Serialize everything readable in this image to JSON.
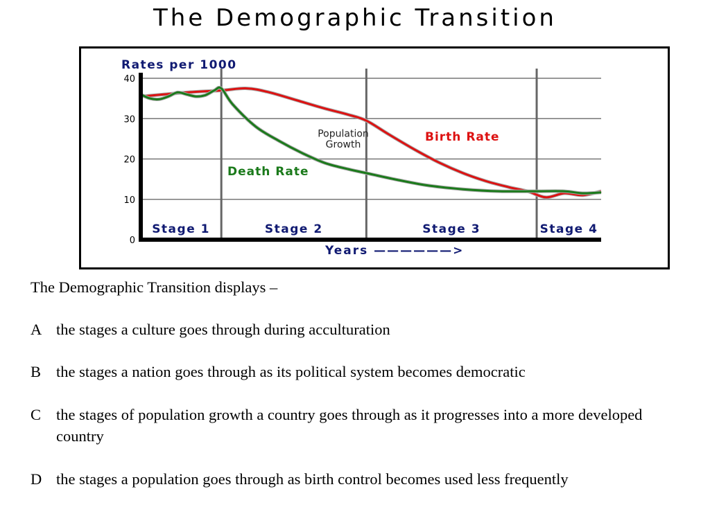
{
  "slide": {
    "title": "The Demographic Transition",
    "prompt": "The Demographic Transition displays –",
    "options": [
      {
        "letter": "A",
        "text": "the stages a culture goes through during acculturation"
      },
      {
        "letter": "B",
        "text": "the stages a nation goes through as its political system becomes democratic"
      },
      {
        "letter": "C",
        "text": "the stages of population growth a country goes through as it progresses into a more developed country"
      },
      {
        "letter": "D",
        "text": "the stages a population goes through as birth control becomes used less frequently"
      }
    ]
  },
  "chart_data": {
    "type": "line",
    "title": "",
    "ylabel": "Rates per 1000",
    "xlabel": "Years ——————>",
    "ylim": [
      0,
      40
    ],
    "yticks": [
      0,
      10,
      20,
      30,
      40
    ],
    "xlim": [
      0,
      100
    ],
    "grid": true,
    "stages": [
      {
        "label": "Stage 1",
        "start": 0,
        "end": 17.5
      },
      {
        "label": "Stage 2",
        "start": 17.5,
        "end": 49
      },
      {
        "label": "Stage 3",
        "start": 49,
        "end": 86
      },
      {
        "label": "Stage 4",
        "start": 86,
        "end": 100
      }
    ],
    "series": [
      {
        "name": "Birth Rate",
        "color": "#dd1111",
        "x": [
          0,
          5,
          10,
          17.5,
          23,
          28,
          34,
          40,
          45,
          49,
          54,
          60,
          65,
          70,
          75,
          80,
          84,
          88,
          92,
          96,
          100
        ],
        "y": [
          35.5,
          36,
          36.5,
          37,
          37.5,
          36.5,
          34.5,
          32.5,
          31,
          29.5,
          26,
          22,
          19,
          16.5,
          14.5,
          13,
          12,
          10.5,
          11.5,
          11,
          12
        ]
      },
      {
        "name": "Death Rate",
        "color": "#1b7a1b",
        "x": [
          0,
          2,
          4,
          6,
          8,
          10,
          12,
          14,
          16,
          17.5,
          20,
          25,
          30,
          35,
          40,
          45,
          49,
          55,
          62,
          70,
          78,
          86,
          92,
          96,
          100
        ],
        "y": [
          36,
          35,
          34.8,
          35.5,
          36.5,
          36,
          35.5,
          35.8,
          37,
          37.5,
          33.5,
          28,
          24.5,
          21.5,
          19,
          17.5,
          16.5,
          15,
          13.5,
          12.5,
          12,
          12,
          12,
          11.5,
          11.7
        ]
      }
    ],
    "annotations": [
      {
        "text": "Population",
        "x": 50,
        "y": 25.5
      },
      {
        "text": "Growth",
        "x": 50,
        "y": 22.8
      }
    ]
  }
}
